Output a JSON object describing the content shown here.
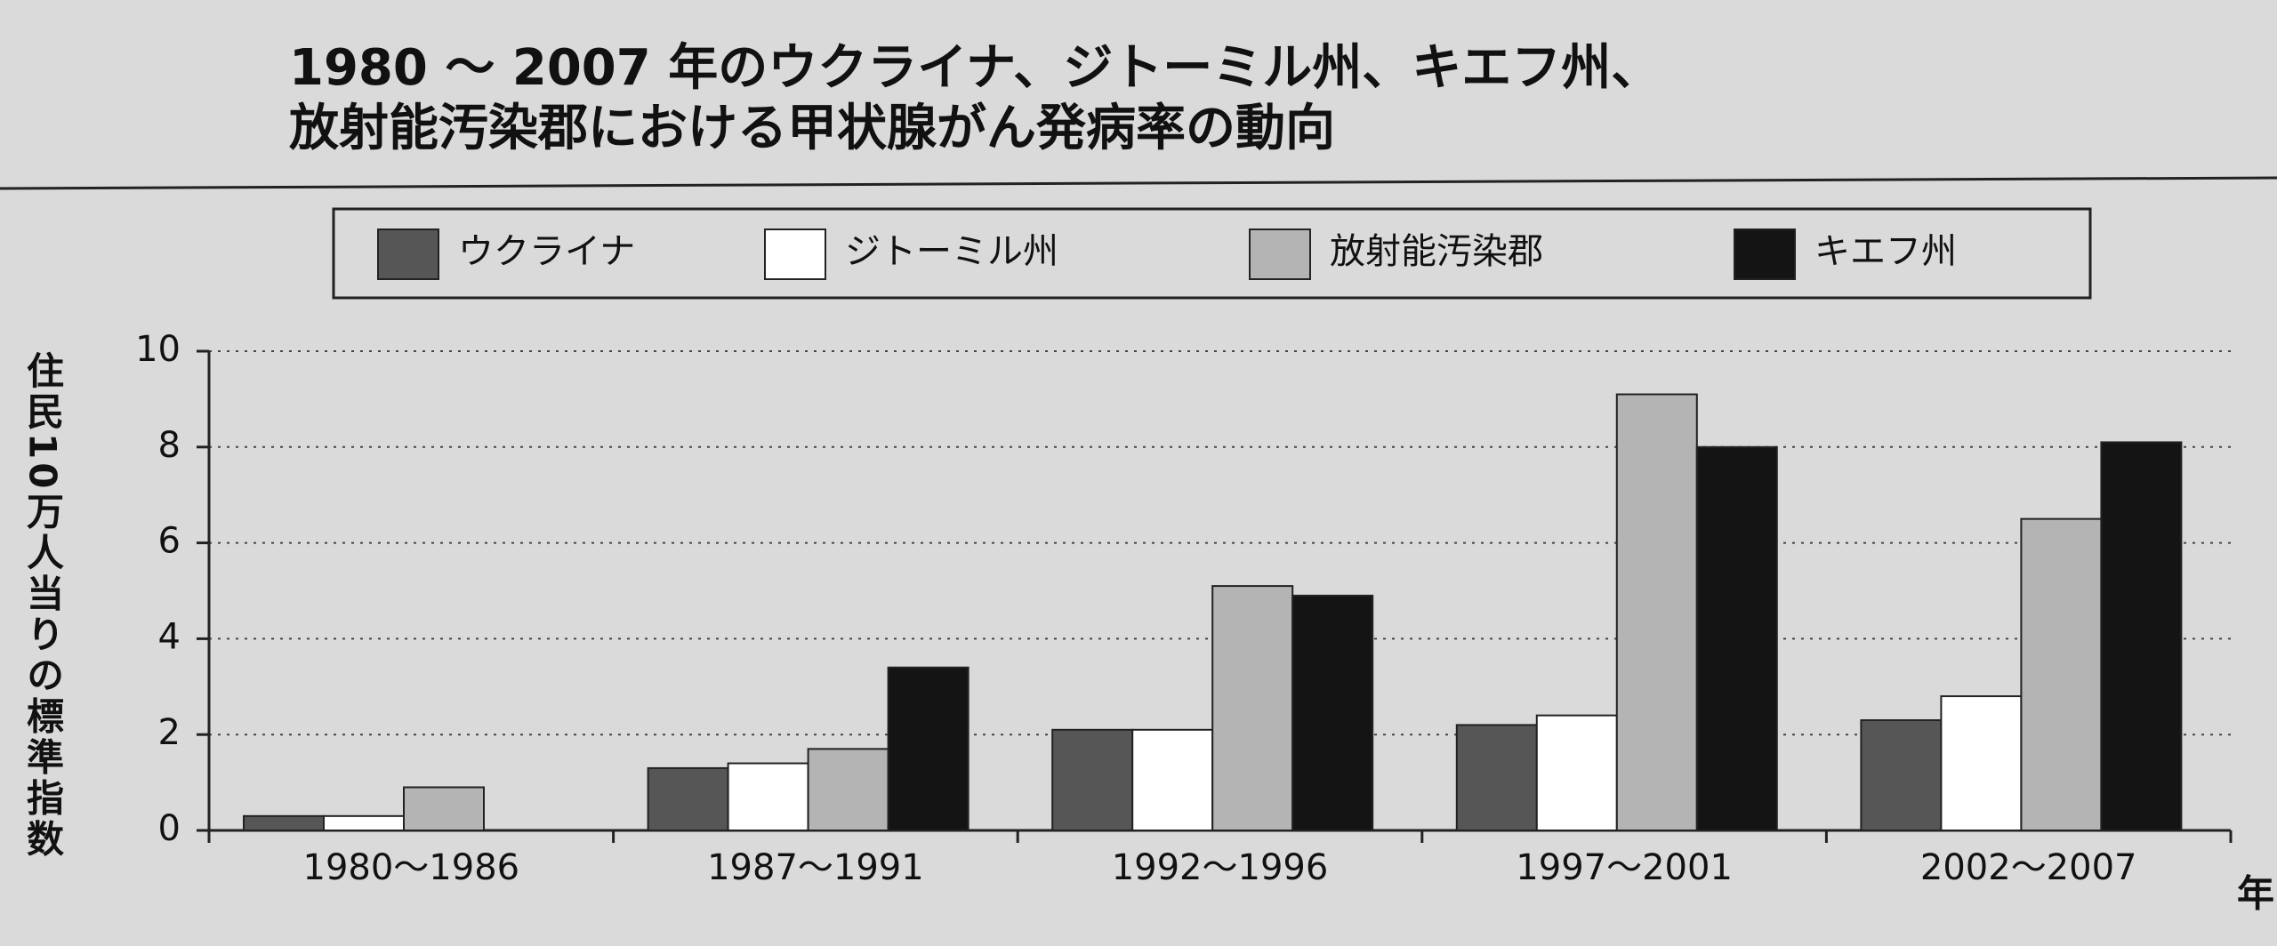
{
  "chart_data": {
    "type": "bar",
    "title": [
      "1980 ～ 2007 年のウクライナ、ジトーミル州、キエフ州、",
      "放射能汚染郡における甲状腺がん発病率の動向"
    ],
    "y_label": "住民10万人当りの標準指数",
    "x_unit": "年",
    "categories": [
      "1980～1986",
      "1987～1991",
      "1992～1996",
      "1997～2001",
      "2002～2007"
    ],
    "series": [
      {
        "name": "ウクライナ",
        "color": "#565656",
        "values": [
          0.3,
          1.3,
          2.1,
          2.2,
          2.3
        ]
      },
      {
        "name": "ジトーミル州",
        "color": "#ffffff",
        "values": [
          0.3,
          1.4,
          2.1,
          2.4,
          2.8
        ]
      },
      {
        "name": "放射能汚染郡",
        "color": "#b4b4b4",
        "values": [
          0.9,
          1.7,
          5.1,
          9.1,
          6.5
        ]
      },
      {
        "name": "キエフ州",
        "color": "#141414",
        "values": [
          null,
          3.4,
          4.9,
          8.0,
          8.1
        ]
      }
    ],
    "ylim": [
      0,
      10
    ],
    "yticks": [
      0,
      2,
      4,
      6,
      8,
      10
    ],
    "grid": true,
    "legend": "top"
  }
}
